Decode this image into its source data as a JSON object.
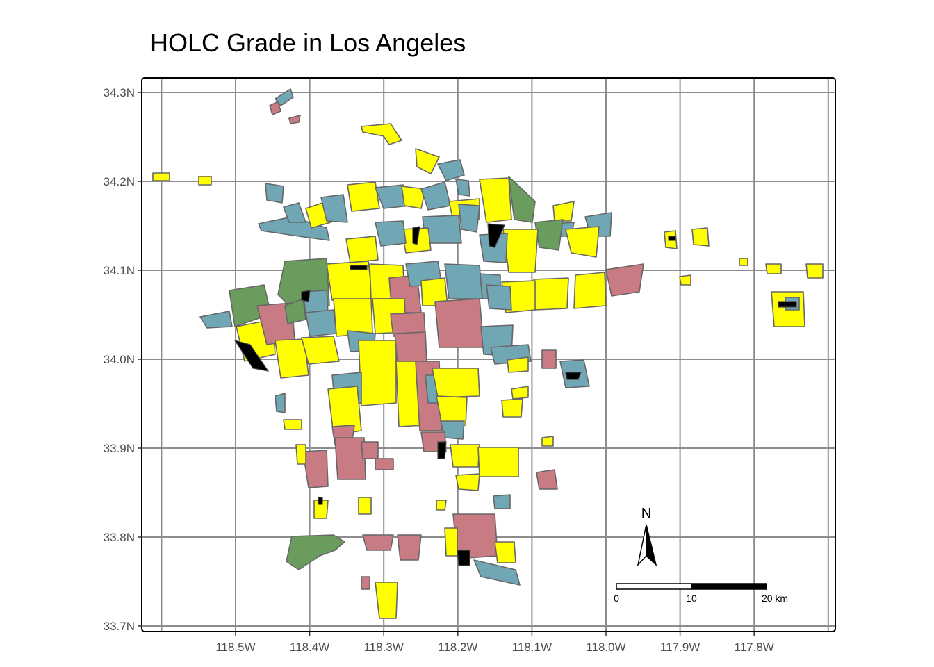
{
  "title": "HOLC Grade in Los Angeles",
  "axes": {
    "x_ticks": [
      "118.5W",
      "118.4W",
      "118.3W",
      "118.2W",
      "118.1W",
      "118.0W",
      "117.9W",
      "117.8W"
    ],
    "y_ticks": [
      "34.3N",
      "34.2N",
      "34.1N",
      "34.0N",
      "33.9N",
      "33.8N",
      "33.7N"
    ]
  },
  "grade_colors": {
    "A": "#6a9c5e",
    "B": "#71a7b5",
    "C": "#ffff00",
    "D": "#c97b84",
    "none": "#000000"
  },
  "north_arrow": {
    "label": "N"
  },
  "scale_bar": {
    "labels": [
      "0",
      "10",
      "20 km"
    ]
  },
  "chart_data": {
    "type": "map",
    "title": "HOLC Grade in Los Angeles",
    "xlim": [
      -118.63,
      -117.72
    ],
    "ylim": [
      33.7,
      34.31
    ],
    "grid": true,
    "x_ticks": [
      -118.5,
      -118.4,
      -118.3,
      -118.2,
      -118.1,
      -118.0,
      -117.9,
      -117.8
    ],
    "y_ticks": [
      34.3,
      34.2,
      34.1,
      34.0,
      33.9,
      33.8,
      33.7
    ],
    "scale_bar_km": [
      0,
      10,
      20
    ]
  }
}
